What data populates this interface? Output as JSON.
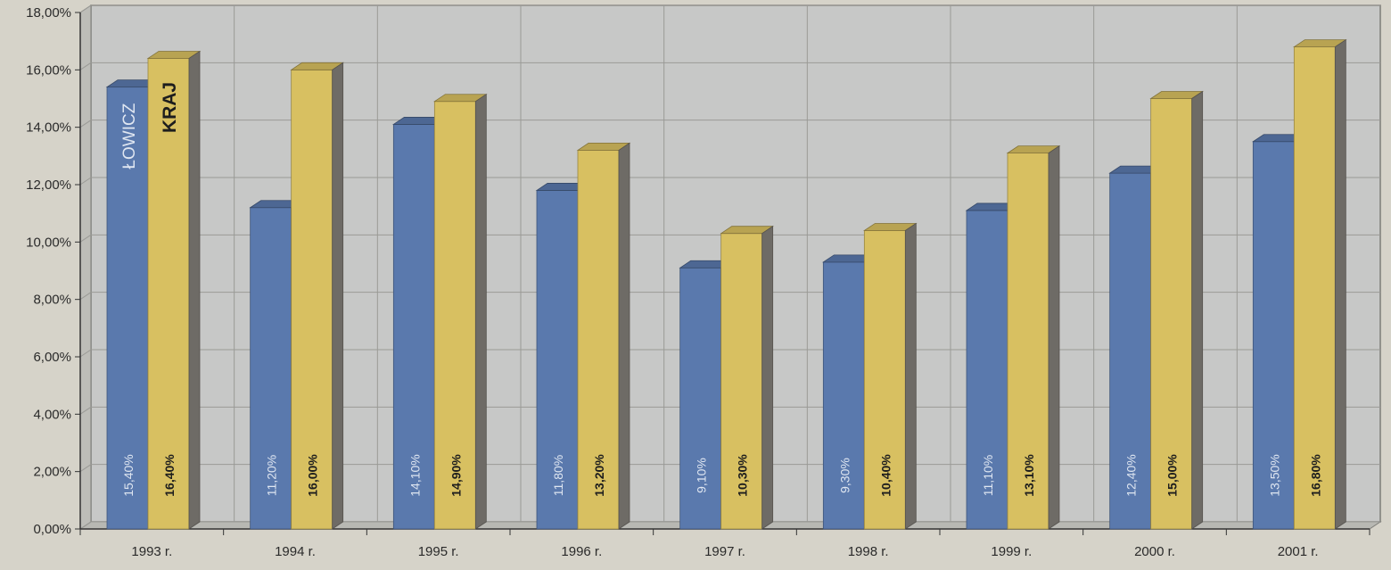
{
  "chart_data": {
    "type": "bar",
    "categories": [
      "1993 r.",
      "1994 r.",
      "1995 r.",
      "1996 r.",
      "1997 r.",
      "1998 r.",
      "1999 r.",
      "2000 r.",
      "2001 r."
    ],
    "series": [
      {
        "name": "ŁOWICZ",
        "values": [
          15.4,
          11.2,
          14.1,
          11.8,
          9.1,
          9.3,
          11.1,
          12.4,
          13.5
        ],
        "labels": [
          "15,40%",
          "11,20%",
          "14,10%",
          "11,80%",
          "9,10%",
          "9,30%",
          "11,10%",
          "12,40%",
          "13,50%"
        ],
        "color": "#5a79ad"
      },
      {
        "name": "KRAJ",
        "values": [
          16.4,
          16.0,
          14.9,
          13.2,
          10.3,
          10.4,
          13.1,
          15.0,
          16.8
        ],
        "labels": [
          "16,40%",
          "16,00%",
          "14,90%",
          "13,20%",
          "10,30%",
          "10,40%",
          "13,10%",
          "15,00%",
          "16,80%"
        ],
        "color": "#d8c061"
      }
    ],
    "ylim": [
      0,
      18
    ],
    "yticks": [
      "0,00%",
      "2,00%",
      "4,00%",
      "6,00%",
      "8,00%",
      "10,00%",
      "12,00%",
      "14,00%",
      "16,00%",
      "18,00%"
    ],
    "grid": true,
    "legend": "in-bar labels on first category",
    "colors": {
      "wall": "#c7c8c7",
      "grid": "#9a9a96",
      "blue": "#5a79ad",
      "yellow": "#d8c061",
      "side_shadow": "#6e6b66"
    }
  }
}
